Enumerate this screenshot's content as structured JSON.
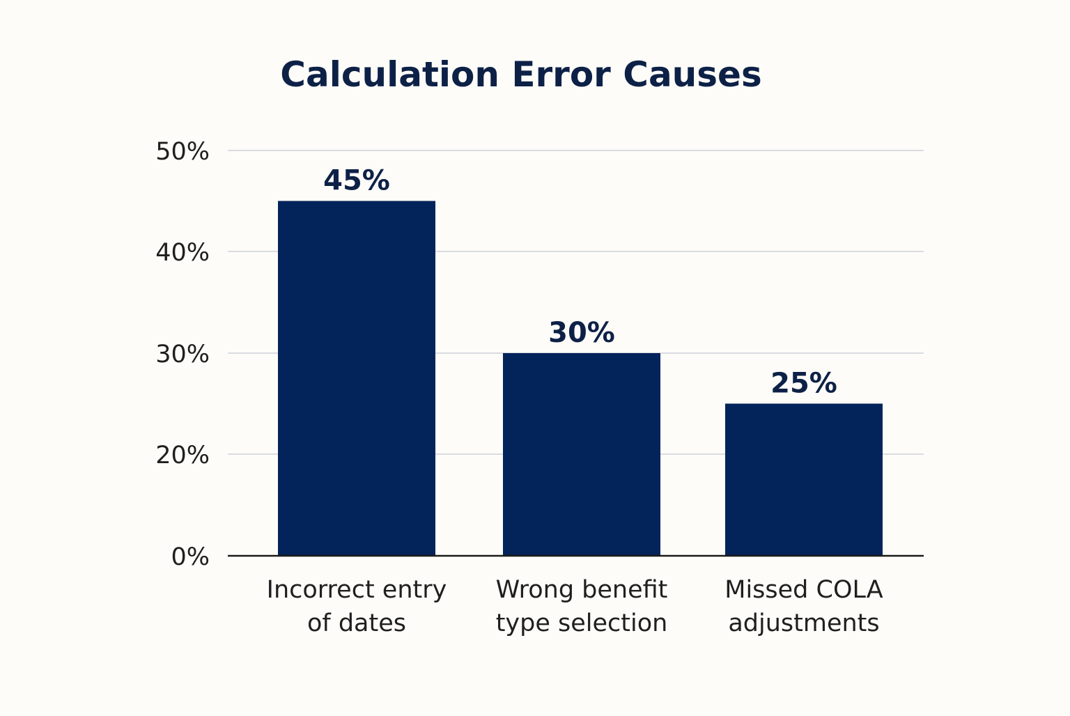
{
  "chart_data": {
    "type": "bar",
    "title": "Calculation Error Causes",
    "xlabel": "",
    "ylabel": "",
    "categories": [
      [
        "Incorrect entry",
        "of dates"
      ],
      [
        "Wrong benefit",
        "type selection"
      ],
      [
        "Missed COLA",
        "adjustments"
      ]
    ],
    "values": [
      45,
      30,
      25
    ],
    "value_labels": [
      "45%",
      "30%",
      "25%"
    ],
    "yticks": [
      {
        "value": 0,
        "label": "0%"
      },
      {
        "value": 20,
        "label": "20%"
      },
      {
        "value": 30,
        "label": "30%"
      },
      {
        "value": 40,
        "label": "40%"
      },
      {
        "value": 50,
        "label": "50%"
      }
    ],
    "ylim": [
      0,
      50
    ],
    "grid": true,
    "legend": "none",
    "bar_color": "#03245a"
  }
}
